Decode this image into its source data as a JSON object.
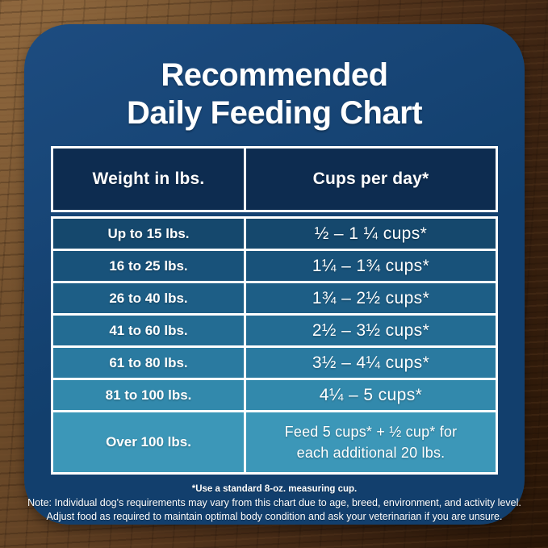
{
  "title": {
    "line1": "Recommended",
    "line2": "Daily Feeding Chart"
  },
  "chart_data": {
    "type": "table",
    "title": "Recommended Daily Feeding Chart",
    "columns": [
      "Weight in lbs.",
      "Cups per day*"
    ],
    "rows": [
      [
        "Up to 15 lbs.",
        "½ – 1 ¼ cups*"
      ],
      [
        "16 to 25 lbs.",
        "1¼ – 1¾ cups*"
      ],
      [
        "26 to 40 lbs.",
        "1¾ – 2½ cups*"
      ],
      [
        "41 to 60 lbs.",
        "2½ – 3½ cups*"
      ],
      [
        "61 to 80 lbs.",
        "3½ – 4¼ cups*"
      ],
      [
        "81 to 100 lbs.",
        "4¼ – 5 cups*"
      ],
      [
        "Over 100 lbs.",
        "Feed 5 cups* + ½ cup* for\neach additional 20 lbs."
      ]
    ]
  },
  "notes": {
    "measuring": "*Use a standard 8-oz. measuring cup.",
    "line1": "Note: Individual dog's requirements may vary from this chart due to age, breed, environment, and activity level.",
    "line2": "Adjust food as required to maintain optimal body condition and ask your veterinarian if you are unsure."
  },
  "colors": {
    "panel_blue": "#123F6D",
    "panel_blue_light": "#1D4C80",
    "header_navy": "#0D2C50",
    "border_white": "#FFFFFF",
    "text_white": "#FFFFFF",
    "row_backgrounds": [
      "#15486D",
      "#18527A",
      "#1D5E86",
      "#236C93",
      "#2A7AA0",
      "#3289AC",
      "#3C97B8"
    ]
  }
}
